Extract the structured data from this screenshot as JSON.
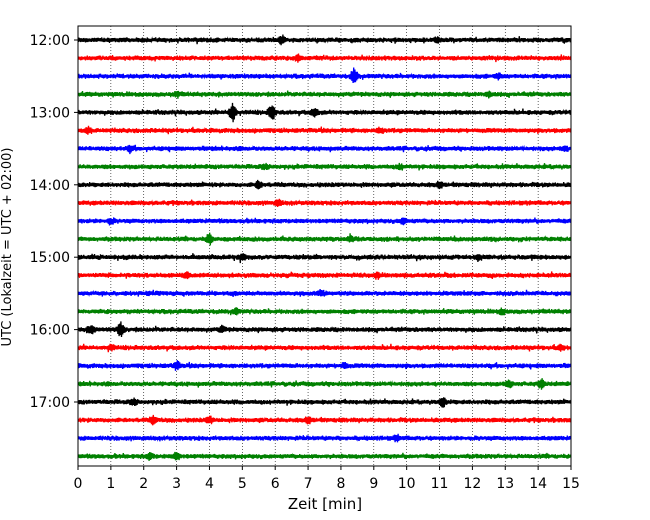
{
  "chart_data": {
    "type": "line",
    "subtype": "helicorder",
    "title": "",
    "xlabel": "Zeit  [min]",
    "ylabel": "UTC (Lokalzeit = UTC + 02:00)",
    "xlim": [
      0,
      15
    ],
    "xticks": [
      0,
      1,
      2,
      3,
      4,
      5,
      6,
      7,
      8,
      9,
      10,
      11,
      12,
      13,
      14,
      15
    ],
    "grid": "vertical dotted",
    "y_tick_labels": [
      "12:00",
      "13:00",
      "14:00",
      "15:00",
      "16:00",
      "17:00"
    ],
    "y_tick_rows": [
      0,
      4,
      8,
      12,
      16,
      20
    ],
    "trace_interval_min": 15,
    "trace_colors": [
      "#000000",
      "#ff0000",
      "#0000ff",
      "#008000"
    ],
    "traces": [
      {
        "start": "12:00",
        "bursts": [
          {
            "t": 6.2,
            "a": 0.55
          },
          {
            "t": 10.9,
            "a": 0.3
          }
        ]
      },
      {
        "start": "12:15",
        "bursts": [
          {
            "t": 6.7,
            "a": 0.35
          }
        ]
      },
      {
        "start": "12:30",
        "bursts": [
          {
            "t": 8.4,
            "a": 1.0
          },
          {
            "t": 12.8,
            "a": 0.3
          }
        ]
      },
      {
        "start": "12:45",
        "bursts": [
          {
            "t": 3.0,
            "a": 0.3
          },
          {
            "t": 12.5,
            "a": 0.3
          }
        ]
      },
      {
        "start": "13:00",
        "bursts": [
          {
            "t": 4.7,
            "a": 1.3
          },
          {
            "t": 5.9,
            "a": 1.1
          },
          {
            "t": 7.2,
            "a": 0.6
          }
        ]
      },
      {
        "start": "13:15",
        "bursts": [
          {
            "t": 0.3,
            "a": 0.4
          },
          {
            "t": 9.2,
            "a": 0.3
          }
        ]
      },
      {
        "start": "13:30",
        "bursts": [
          {
            "t": 1.6,
            "a": 0.35
          },
          {
            "t": 14.8,
            "a": 0.3
          }
        ]
      },
      {
        "start": "13:45",
        "bursts": [
          {
            "t": 5.7,
            "a": 0.3
          },
          {
            "t": 9.8,
            "a": 0.3
          }
        ]
      },
      {
        "start": "14:00",
        "bursts": [
          {
            "t": 5.5,
            "a": 0.5
          },
          {
            "t": 11.0,
            "a": 0.4
          }
        ]
      },
      {
        "start": "14:15",
        "bursts": [
          {
            "t": 6.1,
            "a": 0.35
          }
        ]
      },
      {
        "start": "14:30",
        "bursts": [
          {
            "t": 1.0,
            "a": 0.35
          },
          {
            "t": 9.9,
            "a": 0.35
          }
        ]
      },
      {
        "start": "14:45",
        "bursts": [
          {
            "t": 4.0,
            "a": 0.7
          },
          {
            "t": 8.3,
            "a": 0.3
          }
        ]
      },
      {
        "start": "15:00",
        "bursts": [
          {
            "t": 5.0,
            "a": 0.4
          },
          {
            "t": 12.2,
            "a": 0.35
          }
        ]
      },
      {
        "start": "15:15",
        "bursts": [
          {
            "t": 3.3,
            "a": 0.35
          },
          {
            "t": 9.1,
            "a": 0.35
          }
        ]
      },
      {
        "start": "15:30",
        "bursts": [
          {
            "t": 7.4,
            "a": 0.3
          }
        ]
      },
      {
        "start": "15:45",
        "bursts": [
          {
            "t": 4.8,
            "a": 0.35
          },
          {
            "t": 12.9,
            "a": 0.3
          }
        ]
      },
      {
        "start": "16:00",
        "bursts": [
          {
            "t": 0.4,
            "a": 0.6
          },
          {
            "t": 1.3,
            "a": 0.9
          },
          {
            "t": 4.4,
            "a": 0.35
          }
        ]
      },
      {
        "start": "16:15",
        "bursts": [
          {
            "t": 1.0,
            "a": 0.35
          },
          {
            "t": 14.7,
            "a": 0.3
          }
        ]
      },
      {
        "start": "16:30",
        "bursts": [
          {
            "t": 3.0,
            "a": 0.5
          },
          {
            "t": 8.1,
            "a": 0.3
          }
        ]
      },
      {
        "start": "16:45",
        "bursts": [
          {
            "t": 13.1,
            "a": 0.45
          },
          {
            "t": 14.1,
            "a": 0.6
          }
        ]
      },
      {
        "start": "17:00",
        "bursts": [
          {
            "t": 1.7,
            "a": 0.4
          },
          {
            "t": 11.1,
            "a": 0.6
          }
        ]
      },
      {
        "start": "17:15",
        "bursts": [
          {
            "t": 2.3,
            "a": 0.5
          },
          {
            "t": 4.0,
            "a": 0.45
          },
          {
            "t": 7.0,
            "a": 0.4
          }
        ]
      },
      {
        "start": "17:30",
        "bursts": [
          {
            "t": 9.7,
            "a": 0.3
          }
        ]
      },
      {
        "start": "17:45",
        "bursts": [
          {
            "t": 2.2,
            "a": 0.4
          },
          {
            "t": 3.0,
            "a": 0.5
          }
        ]
      }
    ]
  }
}
